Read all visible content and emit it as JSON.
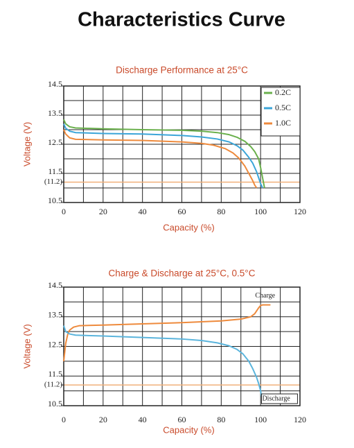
{
  "title": "Characteristics Curve",
  "chart_data": [
    {
      "type": "line",
      "title": "Discharge Performance at 25°C",
      "xlabel": "Capacity (%)",
      "ylabel": "Voltage (V)",
      "xlim": [
        0,
        120
      ],
      "ylim": [
        10.5,
        14.5
      ],
      "xticks": [
        0,
        20,
        40,
        60,
        80,
        100,
        120
      ],
      "yticks": [
        10.5,
        11.5,
        {
          "value": 11.2,
          "label": "(11.2)"
        },
        12.5,
        13.5,
        14.5
      ],
      "xgrid": [
        0,
        10,
        20,
        30,
        40,
        50,
        60,
        70,
        80,
        90,
        100,
        110,
        120
      ],
      "ygrid": [
        10.5,
        11,
        11.5,
        12,
        12.5,
        13,
        13.5,
        14,
        14.5
      ],
      "hline": {
        "value": 11.2,
        "color": "#f0b07a"
      },
      "legend": "upper right",
      "series": [
        {
          "name": "0.2C",
          "color": "#6ab04c",
          "x": [
            0,
            1,
            3,
            6,
            20,
            40,
            60,
            70,
            78,
            84,
            88,
            92,
            95,
            97,
            99,
            100,
            101,
            102
          ],
          "values": [
            13.35,
            13.2,
            13.1,
            13.06,
            13.03,
            13.0,
            12.98,
            12.95,
            12.9,
            12.83,
            12.74,
            12.6,
            12.42,
            12.25,
            12.0,
            11.7,
            11.35,
            11.0
          ]
        },
        {
          "name": "0.5C",
          "color": "#3ba5d8",
          "x": [
            0,
            1,
            3,
            6,
            20,
            40,
            60,
            70,
            78,
            84,
            88,
            91,
            94,
            96,
            98,
            99,
            100,
            101
          ],
          "values": [
            13.2,
            13.05,
            12.95,
            12.9,
            12.87,
            12.85,
            12.8,
            12.75,
            12.68,
            12.58,
            12.45,
            12.3,
            12.05,
            11.85,
            11.55,
            11.35,
            11.15,
            11.0
          ]
        },
        {
          "name": "1.0C",
          "color": "#ee8a3c",
          "x": [
            0,
            1,
            3,
            6,
            20,
            40,
            60,
            70,
            76,
            82,
            86,
            89,
            92,
            94,
            96,
            97,
            98
          ],
          "values": [
            13.0,
            12.85,
            12.72,
            12.67,
            12.65,
            12.63,
            12.58,
            12.53,
            12.47,
            12.35,
            12.2,
            12.02,
            11.75,
            11.5,
            11.25,
            11.1,
            11.0
          ]
        }
      ]
    },
    {
      "type": "line",
      "title": "Charge & Discharge at 25°C, 0.5°C",
      "xlabel": "Capacity (%)",
      "ylabel": "Voltage (V)",
      "xlim": [
        0,
        120
      ],
      "ylim": [
        10.5,
        14.5
      ],
      "xticks": [
        0,
        20,
        40,
        60,
        80,
        100,
        120
      ],
      "yticks": [
        10.5,
        11.5,
        {
          "value": 11.2,
          "label": "(11.2)"
        },
        12.5,
        13.5,
        14.5
      ],
      "xgrid": [
        0,
        10,
        20,
        30,
        40,
        50,
        60,
        70,
        80,
        90,
        100,
        110,
        120
      ],
      "ygrid": [
        10.5,
        11,
        11.5,
        12,
        12.5,
        13,
        13.5,
        14,
        14.5
      ],
      "hline": {
        "value": 11.2,
        "color": "#f0b07a"
      },
      "legend": "inline",
      "series": [
        {
          "name": "Charge",
          "color": "#ee8a3c",
          "x": [
            0,
            0.5,
            1,
            2,
            3,
            5,
            8,
            20,
            40,
            60,
            80,
            90,
            95,
            97,
            99,
            100,
            101,
            105
          ],
          "values": [
            12.0,
            12.3,
            12.6,
            12.9,
            13.05,
            13.15,
            13.2,
            13.22,
            13.26,
            13.3,
            13.36,
            13.42,
            13.5,
            13.6,
            13.8,
            13.88,
            13.9,
            13.9
          ]
        },
        {
          "name": "Discharge",
          "color": "#5ab4dc",
          "x": [
            0,
            1,
            3,
            6,
            20,
            40,
            60,
            70,
            78,
            84,
            88,
            91,
            94,
            96,
            98,
            99,
            100,
            100.5
          ],
          "values": [
            13.2,
            13.0,
            12.92,
            12.88,
            12.85,
            12.8,
            12.75,
            12.7,
            12.62,
            12.52,
            12.4,
            12.25,
            12.0,
            11.75,
            11.45,
            11.25,
            11.0,
            10.8
          ]
        }
      ]
    }
  ]
}
